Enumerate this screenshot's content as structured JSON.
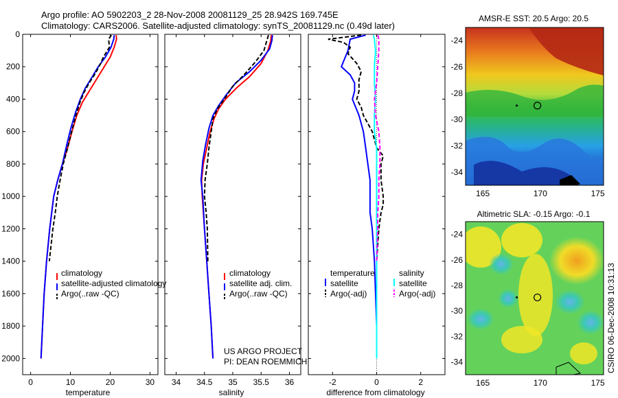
{
  "header": {
    "line1": "Argo profile: AO 5902203_2 28-Nov-2008 20081129_25 28.942S 169.745E",
    "line2": "Climatology: CARS2006. Satellite-adjusted climatology: synTS_20081129.nc (0.49d later)"
  },
  "side_label": "CSIRO 06-Dec-2008 10:31:13",
  "project_note": [
    "US ARGO PROJECT",
    "PI: DEAN ROEMMICH"
  ],
  "colors": {
    "climatology": "#ff0000",
    "satellite": "#0000ff",
    "argo": "#000000",
    "satellite_sal": "#00ffff",
    "argo_sal": "#ff00ff"
  },
  "chart_data": [
    {
      "type": "line",
      "xlabel": "temperature",
      "ylabel": "",
      "xlim": [
        -2,
        32
      ],
      "ylim": [
        2100,
        0
      ],
      "xticks": [
        0,
        10,
        20,
        30
      ],
      "yticks": [
        0,
        200,
        400,
        600,
        800,
        1000,
        1200,
        1400,
        1600,
        1800,
        2000
      ],
      "legend": [
        "climatology",
        "satellite-adjusted climatology",
        "Argo(..raw -QC)"
      ],
      "series": [
        {
          "name": "climatology",
          "color": "#ff0000",
          "points": [
            [
              21.5,
              5
            ],
            [
              21.6,
              30
            ],
            [
              21.0,
              80
            ],
            [
              20.0,
              140
            ],
            [
              18.5,
              200
            ],
            [
              16.5,
              280
            ],
            [
              14.5,
              360
            ],
            [
              13.0,
              420
            ],
            [
              11.6,
              500
            ],
            [
              10.4,
              600
            ],
            [
              9.3,
              700
            ],
            [
              8.0,
              800
            ],
            [
              6.8,
              900
            ],
            [
              5.8,
              1000
            ],
            [
              4.8,
              1200
            ],
            [
              4.0,
              1400
            ],
            [
              3.4,
              1600
            ],
            [
              3.0,
              1800
            ],
            [
              2.6,
              2000
            ]
          ]
        },
        {
          "name": "satellite-adjusted climatology",
          "color": "#0000ff",
          "points": [
            [
              21.0,
              5
            ],
            [
              20.9,
              30
            ],
            [
              20.2,
              80
            ],
            [
              18.8,
              140
            ],
            [
              17.0,
              200
            ],
            [
              15.3,
              270
            ],
            [
              13.8,
              330
            ],
            [
              12.5,
              400
            ],
            [
              11.3,
              480
            ],
            [
              10.1,
              580
            ],
            [
              9.1,
              680
            ],
            [
              8.0,
              800
            ],
            [
              6.8,
              900
            ],
            [
              5.8,
              1000
            ],
            [
              4.8,
              1200
            ],
            [
              4.0,
              1400
            ],
            [
              3.4,
              1600
            ],
            [
              3.0,
              1800
            ],
            [
              2.6,
              2000
            ]
          ]
        },
        {
          "name": "Argo(..raw -QC)",
          "color": "#000000",
          "dash": true,
          "points": [
            [
              20.3,
              5
            ],
            [
              19.6,
              30
            ],
            [
              19.8,
              80
            ],
            [
              18.3,
              140
            ],
            [
              17.6,
              180
            ],
            [
              16.3,
              240
            ],
            [
              14.7,
              300
            ],
            [
              13.4,
              360
            ],
            [
              12.4,
              420
            ],
            [
              11.4,
              500
            ],
            [
              10.3,
              600
            ],
            [
              9.3,
              700
            ],
            [
              8.2,
              800
            ],
            [
              7.4,
              900
            ],
            [
              6.7,
              1000
            ],
            [
              6.2,
              1100
            ],
            [
              5.6,
              1200
            ],
            [
              4.7,
              1400
            ]
          ]
        }
      ]
    },
    {
      "type": "line",
      "xlabel": "salinity",
      "ylabel": "",
      "xlim": [
        33.8,
        36.2
      ],
      "ylim": [
        2100,
        0
      ],
      "xticks": [
        34,
        34.5,
        35,
        35.5,
        36
      ],
      "yticks": [],
      "legend": [
        "climatology",
        "satellite adj. clim.",
        "Argo(..raw -QC)"
      ],
      "series": [
        {
          "name": "climatology",
          "color": "#ff0000",
          "points": [
            [
              35.68,
              5
            ],
            [
              35.67,
              40
            ],
            [
              35.62,
              100
            ],
            [
              35.5,
              180
            ],
            [
              35.3,
              260
            ],
            [
              35.07,
              330
            ],
            [
              34.87,
              400
            ],
            [
              34.75,
              460
            ],
            [
              34.67,
              520
            ],
            [
              34.6,
              600
            ],
            [
              34.54,
              700
            ],
            [
              34.48,
              800
            ],
            [
              34.45,
              900
            ],
            [
              34.46,
              1000
            ],
            [
              34.5,
              1200
            ],
            [
              34.54,
              1400
            ],
            [
              34.58,
              1600
            ],
            [
              34.62,
              1800
            ],
            [
              34.65,
              2000
            ]
          ]
        },
        {
          "name": "satellite adj. clim.",
          "color": "#0000ff",
          "points": [
            [
              35.7,
              5
            ],
            [
              35.69,
              40
            ],
            [
              35.65,
              90
            ],
            [
              35.5,
              160
            ],
            [
              35.3,
              230
            ],
            [
              35.05,
              300
            ],
            [
              34.87,
              380
            ],
            [
              34.75,
              440
            ],
            [
              34.65,
              500
            ],
            [
              34.58,
              580
            ],
            [
              34.52,
              680
            ],
            [
              34.47,
              780
            ],
            [
              34.44,
              900
            ],
            [
              34.47,
              1000
            ],
            [
              34.5,
              1200
            ],
            [
              34.54,
              1400
            ],
            [
              34.58,
              1600
            ],
            [
              34.62,
              1800
            ],
            [
              34.65,
              2000
            ]
          ]
        },
        {
          "name": "Argo(..raw -QC)",
          "color": "#000000",
          "dash": true,
          "points": [
            [
              35.63,
              5
            ],
            [
              35.6,
              40
            ],
            [
              35.55,
              100
            ],
            [
              35.4,
              170
            ],
            [
              35.2,
              250
            ],
            [
              35.0,
              320
            ],
            [
              34.85,
              400
            ],
            [
              34.73,
              460
            ],
            [
              34.65,
              520
            ],
            [
              34.62,
              600
            ],
            [
              34.58,
              700
            ],
            [
              34.55,
              800
            ],
            [
              34.51,
              900
            ],
            [
              34.5,
              1000
            ],
            [
              34.53,
              1100
            ],
            [
              34.55,
              1200
            ],
            [
              34.56,
              1400
            ]
          ]
        }
      ]
    },
    {
      "type": "line",
      "xlabel": "difference from climatology",
      "ylabel": "",
      "xlim": [
        -3.1,
        3.1
      ],
      "ylim": [
        2100,
        0
      ],
      "xticks": [
        -2,
        0,
        2
      ],
      "yticks": [],
      "legend_titles": [
        "temperature",
        "salinity"
      ],
      "legend": [
        "satellite",
        "Argo(-adj)",
        "satellite",
        "Argo(-adj)"
      ],
      "series": [
        {
          "name": "satellite",
          "group": "temperature",
          "color": "#0000ff",
          "points": [
            [
              -0.5,
              5
            ],
            [
              -1.2,
              30
            ],
            [
              -1.3,
              100
            ],
            [
              -1.6,
              200
            ],
            [
              -1.2,
              250
            ],
            [
              -1.0,
              300
            ],
            [
              -1.0,
              350
            ],
            [
              -1.1,
              400
            ],
            [
              -0.8,
              500
            ],
            [
              -0.6,
              600
            ],
            [
              -0.5,
              700
            ],
            [
              -0.4,
              800
            ],
            [
              -0.3,
              900
            ],
            [
              -0.3,
              1000
            ],
            [
              -0.3,
              1100
            ],
            [
              -0.2,
              1200
            ],
            [
              -0.1,
              1400
            ],
            [
              -0.05,
              1600
            ],
            [
              0,
              1800
            ],
            [
              0,
              2000
            ]
          ]
        },
        {
          "name": "Argo(-adj)",
          "group": "temperature",
          "color": "#000000",
          "dash": true,
          "points": [
            [
              -0.7,
              5
            ],
            [
              -2.2,
              30
            ],
            [
              -1.5,
              50
            ],
            [
              -1.2,
              80
            ],
            [
              -1.3,
              120
            ],
            [
              -0.9,
              180
            ],
            [
              -0.7,
              230
            ],
            [
              -0.8,
              280
            ],
            [
              -0.8,
              350
            ],
            [
              -0.9,
              400
            ],
            [
              -0.7,
              450
            ],
            [
              -0.6,
              500
            ],
            [
              -0.4,
              550
            ],
            [
              -0.2,
              600
            ],
            [
              -0.1,
              650
            ],
            [
              0,
              700
            ],
            [
              0.3,
              750
            ],
            [
              0.2,
              800
            ],
            [
              0.2,
              900
            ],
            [
              0.3,
              1000
            ],
            [
              0.3,
              1050
            ],
            [
              0.2,
              1100
            ],
            [
              0.1,
              1200
            ],
            [
              0,
              1400
            ]
          ]
        },
        {
          "name": "satellite",
          "group": "salinity",
          "color": "#00ffff",
          "points": [
            [
              -0.15,
              5
            ],
            [
              -0.1,
              30
            ],
            [
              -0.05,
              100
            ],
            [
              -0.1,
              200
            ],
            [
              -0.1,
              300
            ],
            [
              -0.05,
              400
            ],
            [
              -0.1,
              500
            ],
            [
              -0.1,
              600
            ],
            [
              0,
              700
            ],
            [
              0,
              800
            ],
            [
              0,
              900
            ],
            [
              0,
              1000
            ],
            [
              0,
              1200
            ],
            [
              0,
              1400
            ],
            [
              0,
              1600
            ],
            [
              0,
              1800
            ],
            [
              0,
              2000
            ]
          ]
        },
        {
          "name": "Argo(-adj)",
          "group": "salinity",
          "color": "#ff00ff",
          "dash": true,
          "points": [
            [
              0.05,
              5
            ],
            [
              0.1,
              30
            ],
            [
              0.1,
              100
            ],
            [
              0.05,
              200
            ],
            [
              0,
              300
            ],
            [
              -0.1,
              400
            ],
            [
              -0.05,
              500
            ],
            [
              0.1,
              600
            ],
            [
              0.15,
              700
            ],
            [
              0.15,
              800
            ],
            [
              0.1,
              900
            ],
            [
              0.1,
              1000
            ],
            [
              0.05,
              1100
            ],
            [
              0.05,
              1200
            ],
            [
              0,
              1400
            ]
          ]
        }
      ],
      "reference_line": 0
    },
    {
      "type": "heatmap",
      "title": "AMSR-E SST: 20.5 Argo: 20.5",
      "xlim": [
        163.5,
        175.5
      ],
      "ylim": [
        -35,
        -23
      ],
      "xticks": [
        165,
        170,
        175
      ],
      "yticks": [
        -24,
        -26,
        -28,
        -30,
        -32,
        -34
      ],
      "float_position": [
        169.745,
        -28.942
      ]
    },
    {
      "type": "heatmap",
      "title": "Altimetric SLA: -0.15 Argo: -0.1",
      "xlim": [
        163.5,
        175.5
      ],
      "ylim": [
        -35,
        -23
      ],
      "xticks": [
        165,
        170,
        175
      ],
      "yticks": [
        -24,
        -26,
        -28,
        -30,
        -32,
        -34
      ],
      "float_position": [
        169.745,
        -28.942
      ]
    }
  ]
}
